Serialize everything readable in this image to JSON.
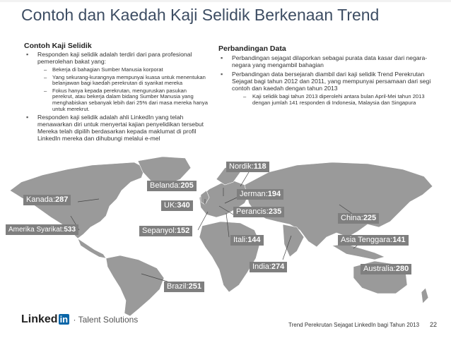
{
  "title": "Contoh dan Kaedah Kaji Selidik Berkenaan Trend",
  "left": {
    "heading": "Contoh Kaji Selidik",
    "bullet1": "Responden kaji selidik adalah terdiri dari para profesional pemerolehan bakat yang:",
    "sub1": "Bekerja di bahagian Sumber Manusia korporat",
    "sub2": "Yang sekurang-kurangnya mempunyai kuasa untuk menentukan belanjawan bagi kaedah perekrutan di syarikat mereka",
    "sub3": "Fokus hanya kepada perekrutan, menguruskan pasukan perekrut, atau bekerja dalam bidang Sumber Manusia yang  menghabiskan sebanyak lebih dari 25% dari masa mereka hanya untuk merekrut.",
    "bullet2": "Responden kaji selidik adalah ahli LinkedIn yang telah menawarkan diri untuk menyertai kajian penyelidikan tersebut Mereka telah dipilih berdasarkan kepada maklumat di profil LinkedIn mereka dan dihubungi melalui e-mel"
  },
  "right": {
    "heading": "Perbandingan Data",
    "bullet1": "Perbandingan sejagat dilaporkan sebagai purata data kasar dari negara-negara yang mengambil bahagian",
    "bullet2": "Perbandingan data bersejarah diambil dari kaji selidik Trend Perekrutan Sejagat bagi tahun 2012 dan 2011, yang mempunyai persamaan dari segi contoh dan kaedah dengan tahun 2013",
    "sub1": "Kaji selidik bagi tahun 2013 diperolehi antara bulan April-Mei tahun 2013 dengan jumlah 141 responden di Indonesia, Malaysia dan Singapura"
  },
  "map_labels": [
    {
      "name": "Nordik",
      "value": "118"
    },
    {
      "name": "Belanda",
      "value": "205"
    },
    {
      "name": "Jerman",
      "value": "194"
    },
    {
      "name": "Kanada",
      "value": "287"
    },
    {
      "name": "UK",
      "value": "340"
    },
    {
      "name": "Perancis",
      "value": "235"
    },
    {
      "name": "China",
      "value": "225"
    },
    {
      "name": "Amerika Syarikat",
      "value": "533"
    },
    {
      "name": "Sepanyol",
      "value": "152"
    },
    {
      "name": "Itali",
      "value": "144"
    },
    {
      "name": "Asia Tenggara",
      "value": "141"
    },
    {
      "name": "India",
      "value": "274"
    },
    {
      "name": "Australia",
      "value": "280"
    },
    {
      "name": "Brazil",
      "value": "251"
    }
  ],
  "footer": {
    "logo_linked": "Linked",
    "logo_in": "in",
    "logo_sub": "Talent Solutions",
    "caption": "Trend Perekrutan Sejagat LinkedIn bagi Tahun 2013",
    "page": "22"
  },
  "colors": {
    "label_bg": "#7f7f7f",
    "map_land": "#9a9a9a",
    "title": "#3d4d63"
  }
}
